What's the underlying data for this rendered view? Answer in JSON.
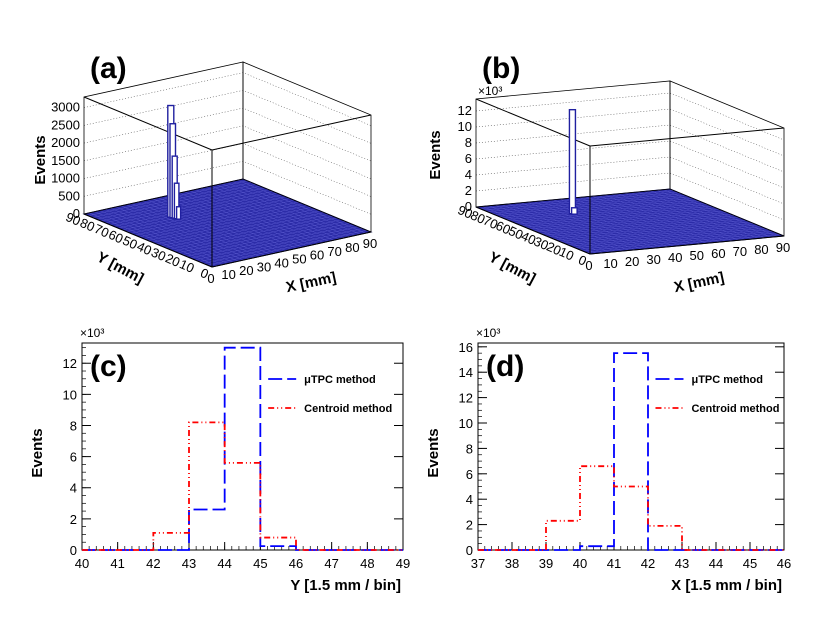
{
  "chart_data": [
    {
      "panel": "(a)",
      "type": "lego3d",
      "zlabel": "Events",
      "xlabel": "X [mm]",
      "ylabel": "Y [mm]",
      "zticks": [
        "0",
        "500",
        "1000",
        "1500",
        "2000",
        "2500",
        "3000"
      ],
      "xticks": [
        "0",
        "10",
        "20",
        "30",
        "40",
        "50",
        "60",
        "70",
        "80",
        "90"
      ],
      "yticks": [
        "0",
        "10",
        "20",
        "30",
        "40",
        "50",
        "60",
        "70",
        "80",
        "90"
      ],
      "zlim": [
        0,
        3300
      ],
      "peak": {
        "x": 30,
        "y": 66,
        "values": [
          3150,
          2650,
          1750,
          1000,
          350
        ]
      }
    },
    {
      "panel": "(b)",
      "type": "lego3d",
      "zlabel": "Events",
      "xlabel": "X [mm]",
      "ylabel": "Y [mm]",
      "zexponent": "×10³",
      "zticks": [
        "0",
        "2",
        "4",
        "6",
        "8",
        "10",
        "12"
      ],
      "xticks": [
        "0",
        "10",
        "20",
        "30",
        "40",
        "50",
        "60",
        "70",
        "80",
        "90"
      ],
      "yticks": [
        "0",
        "10",
        "20",
        "30",
        "40",
        "50",
        "60",
        "70",
        "80",
        "90"
      ],
      "zlim": [
        0,
        13.5
      ],
      "peak": {
        "x": 30,
        "y": 66,
        "values": [
          13.0,
          0.8
        ]
      }
    },
    {
      "panel": "(c)",
      "type": "histogram",
      "xlabel": "Y [1.5 mm / bin]",
      "ylabel": "Events",
      "yexponent": "×10³",
      "xlim": [
        40,
        49
      ],
      "ylim": [
        0,
        13.3
      ],
      "xticks": [
        "40",
        "41",
        "42",
        "43",
        "44",
        "45",
        "46",
        "47",
        "48",
        "49"
      ],
      "yticks": [
        "0",
        "2",
        "4",
        "6",
        "8",
        "10",
        "12"
      ],
      "bin_edges": [
        40,
        41,
        42,
        43,
        44,
        45,
        46,
        47,
        48,
        49
      ],
      "series": [
        {
          "name": "μTPC method",
          "color": "#0000ff",
          "values": [
            0.0,
            0.0,
            0.0,
            2.6,
            13.0,
            0.25,
            0.0,
            0.0,
            0.0
          ]
        },
        {
          "name": "Centroid method",
          "color": "#ff0000",
          "values": [
            0.0,
            0.0,
            1.1,
            8.2,
            5.6,
            0.8,
            0.0,
            0.0,
            0.0
          ]
        }
      ]
    },
    {
      "panel": "(d)",
      "type": "histogram",
      "xlabel": "X [1.5 mm / bin]",
      "ylabel": "Events",
      "yexponent": "×10³",
      "xlim": [
        37,
        46
      ],
      "ylim": [
        0,
        16.3
      ],
      "xticks": [
        "37",
        "38",
        "39",
        "40",
        "41",
        "42",
        "43",
        "44",
        "45",
        "46"
      ],
      "yticks": [
        "0",
        "2",
        "4",
        "6",
        "8",
        "10",
        "12",
        "14",
        "16"
      ],
      "bin_edges": [
        37,
        38,
        39,
        40,
        41,
        42,
        43,
        44,
        45,
        46
      ],
      "series": [
        {
          "name": "μTPC method",
          "color": "#0000ff",
          "values": [
            0.0,
            0.0,
            0.0,
            0.3,
            15.5,
            0.0,
            0.0,
            0.0,
            0.0
          ]
        },
        {
          "name": "Centroid method",
          "color": "#ff0000",
          "values": [
            0.0,
            0.0,
            2.3,
            6.6,
            5.0,
            1.9,
            0.0,
            0.0,
            0.0
          ]
        }
      ]
    }
  ]
}
